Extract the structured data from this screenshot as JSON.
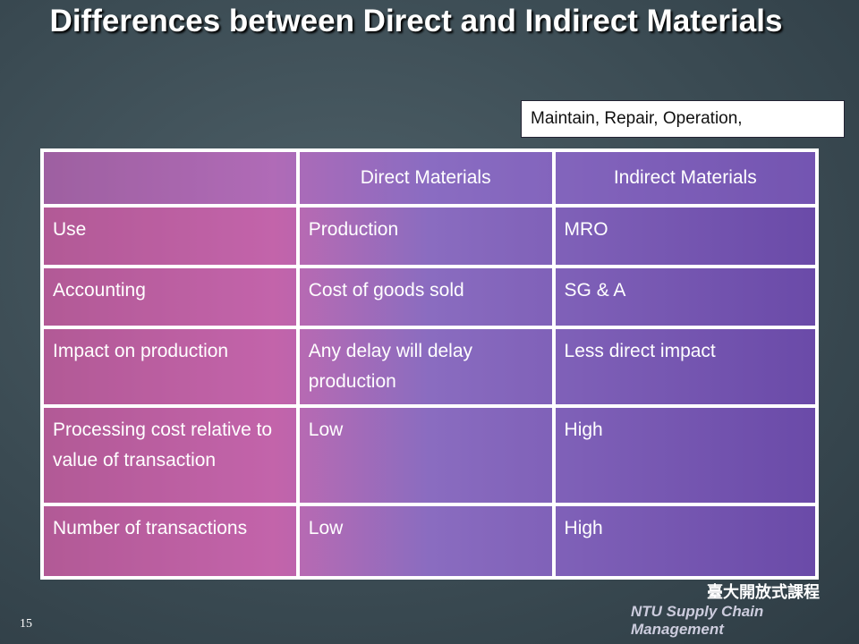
{
  "title": "Differences between Direct and Indirect Materials",
  "note": "Maintain, Repair, Operation,",
  "table": {
    "header": [
      "",
      "Direct Materials",
      "Indirect Materials"
    ],
    "rows": [
      [
        "Use",
        "Production",
        "MRO"
      ],
      [
        "Accounting",
        "Cost of goods sold",
        "SG & A"
      ],
      [
        "Impact on production",
        "Any delay will delay production",
        "Less direct impact"
      ],
      [
        "Processing cost relative to value of transaction",
        "Low",
        "High"
      ],
      [
        "Number of transactions",
        "Low",
        "High"
      ]
    ]
  },
  "page_number": "15",
  "footer": {
    "logo": "臺大開放式課程",
    "brand": "NTU Supply Chain Management"
  }
}
